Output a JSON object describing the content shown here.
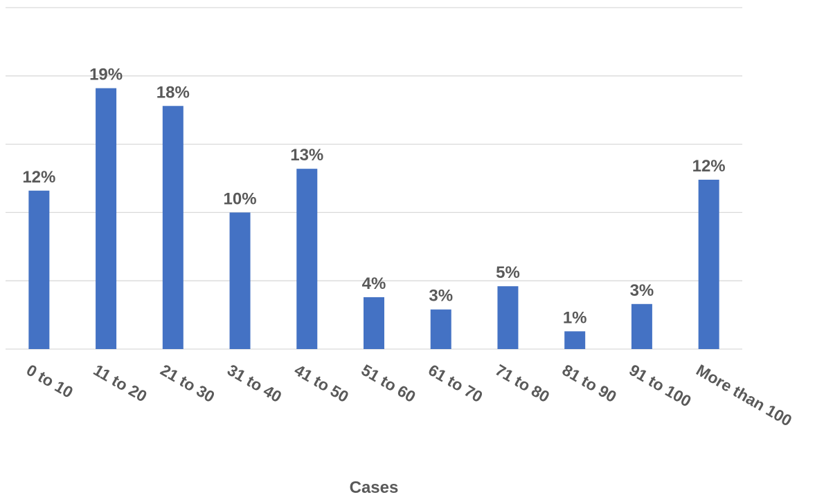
{
  "chart_data": {
    "type": "bar",
    "categories": [
      "0 to 10",
      "11 to 20",
      "21 to 30",
      "31 to 40",
      "41 to 50",
      "51 to 60",
      "61 to 70",
      "71 to 80",
      "81 to 90",
      "91 to 100",
      "More than 100"
    ],
    "values": [
      11.6,
      19.1,
      17.8,
      10.0,
      13.2,
      3.8,
      2.9,
      4.6,
      1.3,
      3.3,
      12.4
    ],
    "value_labels": [
      "12%",
      "19%",
      "18%",
      "10%",
      "13%",
      "4%",
      "3%",
      "5%",
      "1%",
      "3%",
      "12%"
    ],
    "title": "",
    "xlabel": "Cases",
    "ylabel": "",
    "ylim": [
      0,
      25
    ],
    "grid": true,
    "bar_color": "#4472c4"
  }
}
